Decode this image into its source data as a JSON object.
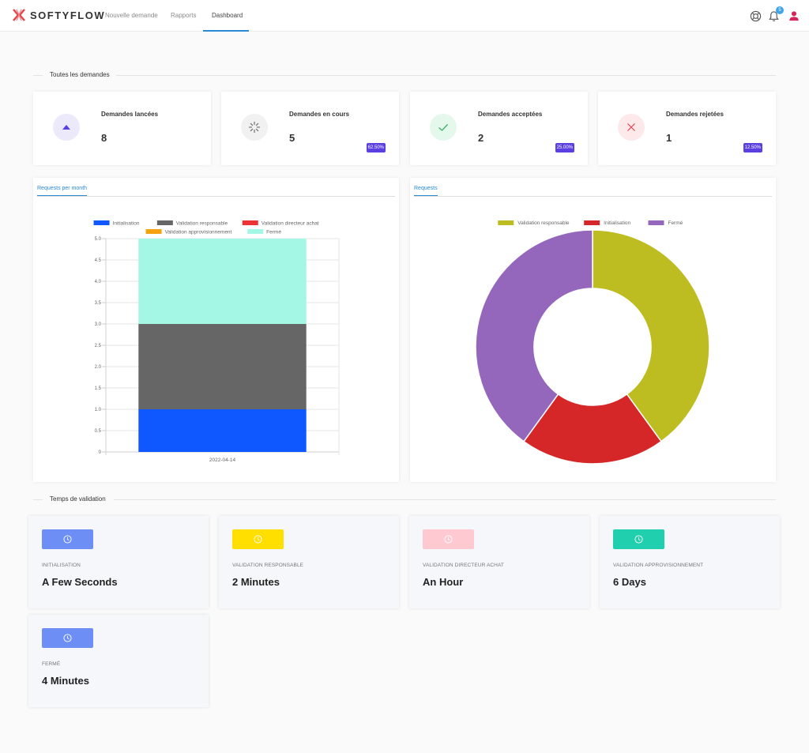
{
  "header": {
    "brand": "SOFTYFLOW",
    "nav": [
      {
        "label": "Nouvelle demande"
      },
      {
        "label": "Rapports"
      },
      {
        "label": "Dashboard",
        "active": true
      }
    ],
    "notification_count": "5",
    "icons": [
      "help-lifebuoy-icon",
      "bell-icon",
      "user-icon"
    ]
  },
  "sections": {
    "requests_title": "Toutes les demandes",
    "validation_title": "Temps de validation"
  },
  "stats": [
    {
      "label": "Demandes lancées",
      "value": "8",
      "badge": "",
      "icon": "triangle-up-icon",
      "icon_bg": "#ece9fb",
      "icon_color": "#5b3fe0"
    },
    {
      "label": "Demandes en cours",
      "value": "5",
      "badge": "62.50%",
      "icon": "spinner-icon",
      "icon_bg": "#f1f1f1",
      "icon_color": "#777777"
    },
    {
      "label": "Demandes acceptées",
      "value": "2",
      "badge": "25.00%",
      "icon": "check-icon",
      "icon_bg": "#e4f8ec",
      "icon_color": "#3eb06d"
    },
    {
      "label": "Demandes rejetées",
      "value": "1",
      "badge": "12.50%",
      "icon": "close-icon",
      "icon_bg": "#fde9ea",
      "icon_color": "#e3434d"
    }
  ],
  "panels": {
    "bar_tab": "Requests per month",
    "pie_tab": "Requests"
  },
  "chart_data": [
    {
      "type": "bar",
      "stacked": true,
      "categories": [
        "2022-04-14"
      ],
      "series": [
        {
          "name": "Initialisation",
          "values": [
            1
          ],
          "color": "#0f58ff"
        },
        {
          "name": "Validation responsable",
          "values": [
            2
          ],
          "color": "#666666"
        },
        {
          "name": "Validation directeur achat",
          "values": [
            0
          ],
          "color": "#ee3335"
        },
        {
          "name": "Validation approvisionnement",
          "values": [
            0
          ],
          "color": "#f5a214"
        },
        {
          "name": "Fermé",
          "values": [
            2
          ],
          "color": "#a3f7e4"
        }
      ],
      "ylim": [
        0,
        5
      ],
      "yticks": [
        "0",
        "0.5",
        "1.0",
        "1.5",
        "2.0",
        "2.5",
        "3.0",
        "3.5",
        "4.0",
        "4.5",
        "5.0"
      ],
      "grid": true,
      "legend": "top"
    },
    {
      "type": "pie",
      "donut": true,
      "series": [
        {
          "name": "Validation responsable",
          "value": 2,
          "color": "#bdbd22"
        },
        {
          "name": "Initialisation",
          "value": 1,
          "color": "#d62728"
        },
        {
          "name": "Fermé",
          "value": 2,
          "color": "#9467bd"
        }
      ],
      "legend": "top"
    }
  ],
  "validation": [
    {
      "label": "INITIALISATION",
      "value": "A Few Seconds",
      "color": "#6c8ef5",
      "icon": "clock-icon"
    },
    {
      "label": "VALIDATION RESPONSABLE",
      "value": "2 Minutes",
      "color": "#ffdf00",
      "icon": "clock-icon"
    },
    {
      "label": "VALIDATION DIRECTEUR ACHAT",
      "value": "An Hour",
      "color": "#ffc9d1",
      "icon": "clock-icon"
    },
    {
      "label": "VALIDATION APPROVISIONNEMENT",
      "value": "6 Days",
      "color": "#20cfae",
      "icon": "clock-icon"
    },
    {
      "label": "FERMÉ",
      "value": "4 Minutes",
      "color": "#6c8ef5",
      "icon": "clock-icon"
    }
  ]
}
